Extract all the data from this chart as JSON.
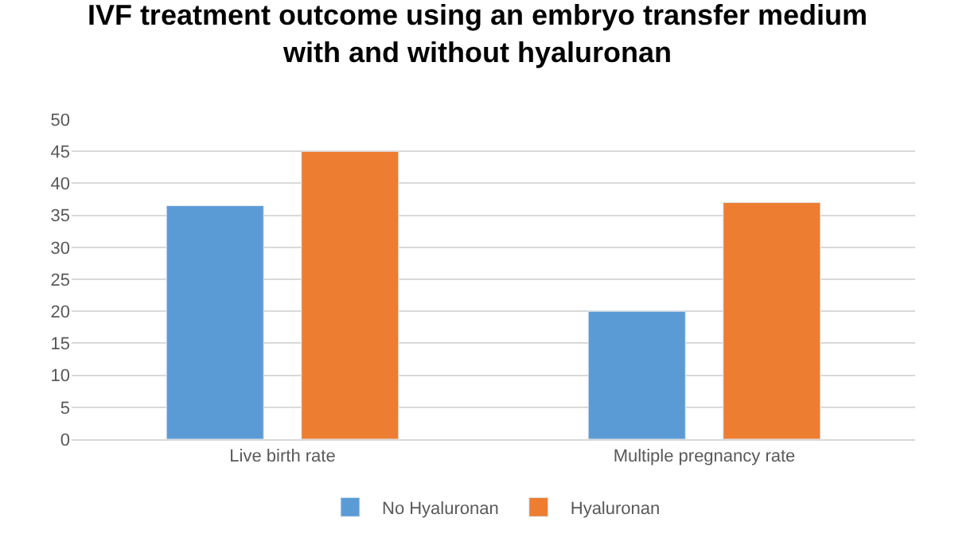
{
  "chart_data": {
    "type": "bar",
    "title": "IVF treatment outcome using an embryo transfer medium with and without hyaluronan",
    "categories": [
      "Live birth rate",
      "Multiple pregnancy rate"
    ],
    "series": [
      {
        "name": "No Hyaluronan",
        "color": "#5b9bd5",
        "values": [
          36.5,
          20
        ]
      },
      {
        "name": "Hyaluronan",
        "color": "#ed7d31",
        "values": [
          45,
          37
        ]
      }
    ],
    "ylim": [
      0,
      50
    ],
    "yticks": [
      0,
      5,
      10,
      15,
      20,
      25,
      30,
      35,
      40,
      45,
      50
    ],
    "grid": "y",
    "legend": "bottom"
  }
}
